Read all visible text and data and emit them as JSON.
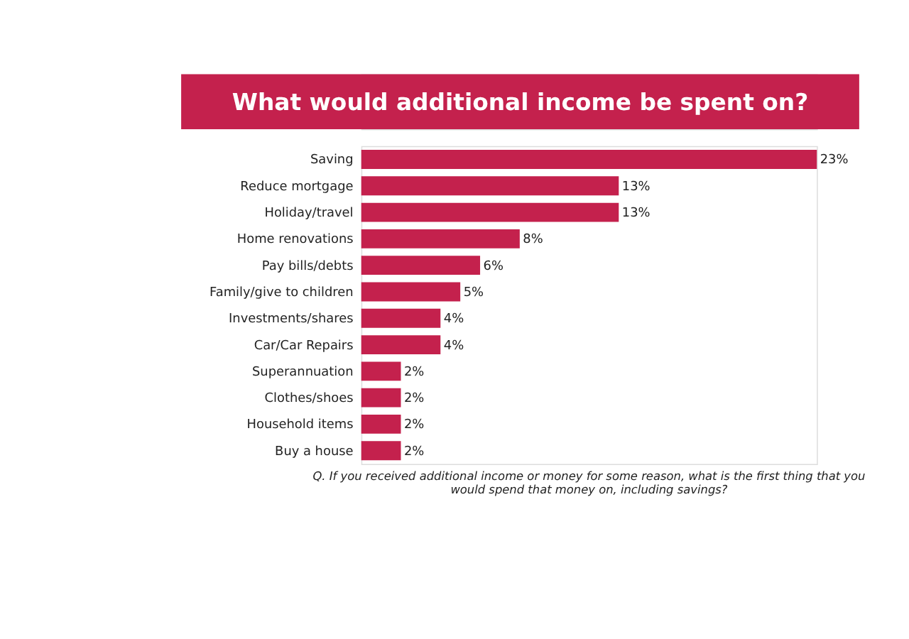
{
  "chart_data": {
    "type": "bar",
    "orientation": "horizontal",
    "title": "What would additional income be spent on?",
    "categories": [
      "Saving",
      "Reduce mortgage",
      "Holiday/travel",
      "Home renovations",
      "Pay bills/debts",
      "Family/give to children",
      "Investments/shares",
      "Car/Car Repairs",
      "Superannuation",
      "Clothes/shoes",
      "Household items",
      "Buy a house"
    ],
    "values": [
      23,
      13,
      13,
      8,
      6,
      5,
      4,
      4,
      2,
      2,
      2,
      2
    ],
    "value_labels": [
      "23%",
      "13%",
      "13%",
      "8%",
      "6%",
      "5%",
      "4%",
      "4%",
      "2%",
      "2%",
      "2%",
      "2%"
    ],
    "color": "#c4214d",
    "annotations": [
      "Q. If you received additional income or money for some reason, what is the first thing that you would spend that money on, including savings?"
    ]
  }
}
